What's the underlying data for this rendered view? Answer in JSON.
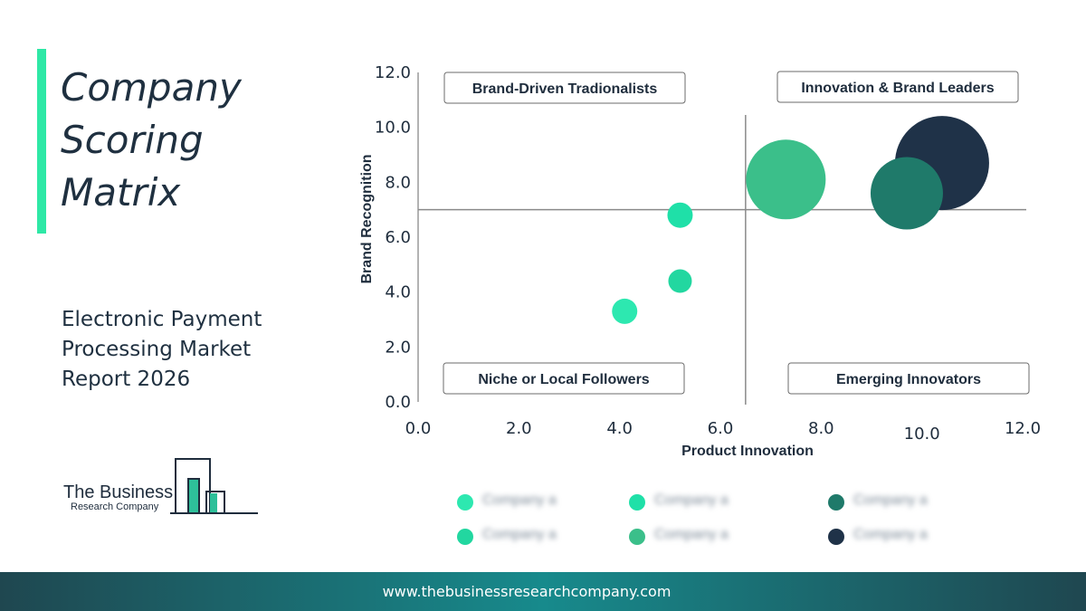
{
  "title_lines": [
    "Company",
    "Scoring",
    "Matrix"
  ],
  "subtitle_lines": [
    "Electronic Payment",
    "Processing Market",
    "Report 2026"
  ],
  "logo": {
    "line1": "The Business",
    "line2": "Research Company"
  },
  "footer": {
    "url": "www.thebusinessresearchcompany.com"
  },
  "colors": {
    "accent": "#2ee8a6",
    "footer_dark": "#1f4750",
    "footer_mid": "#178a8c",
    "dark_navy": "#1f3248"
  },
  "chart_data": {
    "type": "bubble",
    "xlabel": "Product Innovation",
    "ylabel": "Brand Recognition",
    "xlim": [
      0,
      12
    ],
    "ylim": [
      0,
      12
    ],
    "x_ticks": [
      "0.0",
      "2.0",
      "4.0",
      "6.0",
      "8.0",
      "10.0",
      "12.0"
    ],
    "y_ticks": [
      "0.0",
      "2.0",
      "4.0",
      "6.0",
      "8.0",
      "10.0",
      "12.0"
    ],
    "divider": {
      "x": 6.5,
      "y": 7.0
    },
    "quadrants": [
      {
        "name": "Brand-Driven Tradionalists",
        "position": "top-left"
      },
      {
        "name": "Innovation & Brand Leaders",
        "position": "top-right"
      },
      {
        "name": "Niche or Local Followers",
        "position": "bottom-left"
      },
      {
        "name": "Emerging Innovators",
        "position": "bottom-right"
      }
    ],
    "points": [
      {
        "x": 4.1,
        "y": 3.3,
        "size": 14,
        "color": "#2de8b0"
      },
      {
        "x": 5.2,
        "y": 4.4,
        "size": 13,
        "color": "#22d7a0"
      },
      {
        "x": 5.2,
        "y": 6.8,
        "size": 14,
        "color": "#1fe0a8"
      },
      {
        "x": 7.3,
        "y": 8.1,
        "size": 44,
        "color": "#3bbf8a"
      },
      {
        "x": 10.4,
        "y": 8.7,
        "size": 52,
        "color": "#1f3248"
      },
      {
        "x": 9.7,
        "y": 7.6,
        "size": 40,
        "color": "#1f7a6a"
      }
    ],
    "grid": false
  },
  "legend": [
    {
      "label": "Company a",
      "color": "#2de8b0"
    },
    {
      "label": "Company a",
      "color": "#1fe0a8"
    },
    {
      "label": "Company a",
      "color": "#1f7a6a"
    },
    {
      "label": "Company a",
      "color": "#22d7a0"
    },
    {
      "label": "Company a",
      "color": "#3bbf8a"
    },
    {
      "label": "Company a",
      "color": "#1f3248"
    }
  ]
}
